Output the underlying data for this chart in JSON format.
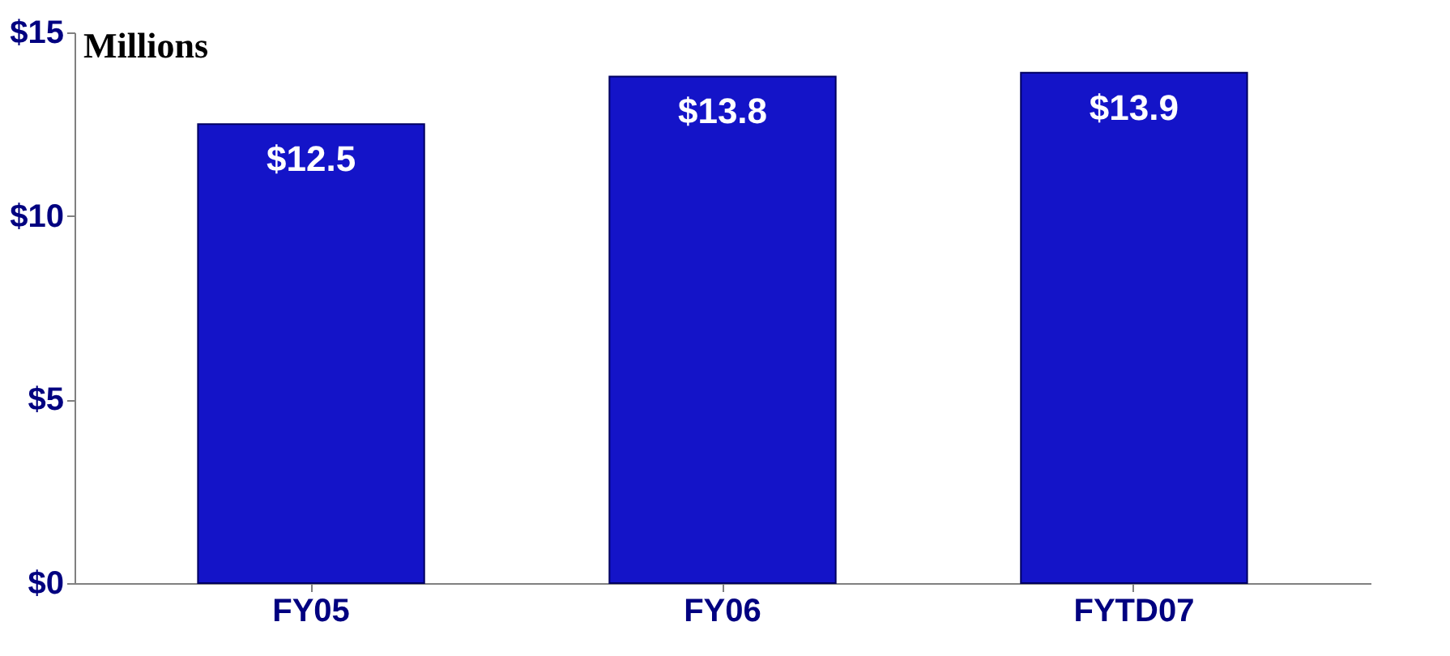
{
  "chart_data": {
    "type": "bar",
    "ylabel": "Millions",
    "categories": [
      "FY05",
      "FY06",
      "FYTD07"
    ],
    "values": [
      12.5,
      13.8,
      13.9
    ],
    "value_labels": [
      "$12.5",
      "$13.8",
      "$13.9"
    ],
    "color": "#1414c8",
    "ylim": [
      0,
      15
    ],
    "yticks": [
      {
        "value": 0,
        "label": "$0"
      },
      {
        "value": 5,
        "label": "$5"
      },
      {
        "value": 10,
        "label": "$10"
      },
      {
        "value": 15,
        "label": "$15"
      }
    ],
    "grid": false
  }
}
